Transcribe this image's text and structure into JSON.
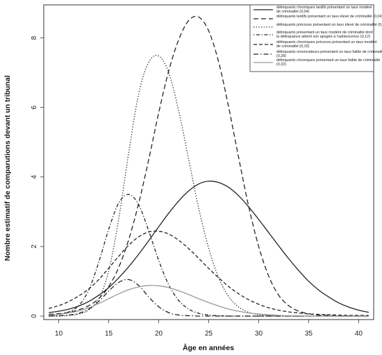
{
  "chart_data": {
    "type": "line",
    "xlabel": "Âge en années",
    "ylabel": "Nombre estimatif de comparutions devant un tribunal",
    "xlim": [
      8.5,
      41.5
    ],
    "ylim": [
      -0.1,
      8.95
    ],
    "xticks": [
      "10",
      "15",
      "20",
      "25",
      "30",
      "35",
      "40"
    ],
    "yticks": [
      "0",
      "2",
      "4",
      "6",
      "8"
    ],
    "legend_position": "top-right",
    "x": [
      9,
      10,
      11,
      12,
      13,
      14,
      15,
      16,
      17,
      18,
      19,
      20,
      21,
      22,
      23,
      24,
      25,
      26,
      27,
      28,
      29,
      30,
      31,
      32,
      33,
      34,
      35,
      36,
      37,
      38,
      39,
      40,
      41
    ],
    "series": [
      {
        "name": [
          "délinquants chroniques tardifs présentant un taux modéré",
          "de criminalité (0,04)"
        ],
        "style": "solid",
        "color": "#222222",
        "values": [
          0.1,
          0.14,
          0.2,
          0.29,
          0.42,
          0.6,
          0.82,
          1.1,
          1.42,
          1.78,
          2.17,
          2.57,
          2.96,
          3.31,
          3.6,
          3.8,
          3.88,
          3.84,
          3.7,
          3.46,
          3.14,
          2.78,
          2.4,
          2.02,
          1.65,
          1.31,
          1.0,
          0.75,
          0.55,
          0.38,
          0.26,
          0.17,
          0.11
        ]
      },
      {
        "name": [
          "délinquants tardifs présentant un taux élevé de criminalité (0,04)"
        ],
        "style": "longdash",
        "color": "#222222",
        "values": [
          0.05,
          0.07,
          0.11,
          0.18,
          0.3,
          0.5,
          0.85,
          1.4,
          2.2,
          3.25,
          4.5,
          5.85,
          7.05,
          7.95,
          8.5,
          8.6,
          8.2,
          7.3,
          6.0,
          4.55,
          3.15,
          2.0,
          1.15,
          0.6,
          0.3,
          0.14,
          0.07,
          0.03,
          0.02,
          0.01,
          0.0,
          0.0,
          0.0
        ]
      },
      {
        "name": [
          "délinquants précoces présentant un taux élevé de criminalité (0,04)"
        ],
        "style": "dotted",
        "color": "#222222",
        "values": [
          0.0,
          0.0,
          0.02,
          0.06,
          0.18,
          0.5,
          1.3,
          2.8,
          4.7,
          6.4,
          7.3,
          7.48,
          7.0,
          5.9,
          4.5,
          3.1,
          1.95,
          1.1,
          0.56,
          0.26,
          0.11,
          0.04,
          0.02,
          0.01,
          0.0,
          0.0,
          0.0,
          0.0,
          0.0,
          0.0,
          0.0,
          0.0,
          0.0
        ]
      },
      {
        "name": [
          "délinquants présentant un taux modéré de criminalité dont",
          "la délinquance atteint son apogée à l’adolescence (0,12)"
        ],
        "style": "dotdash",
        "color": "#222222",
        "values": [
          0.02,
          0.05,
          0.12,
          0.3,
          0.75,
          1.55,
          2.5,
          3.25,
          3.5,
          3.2,
          2.45,
          1.6,
          0.9,
          0.45,
          0.2,
          0.08,
          0.03,
          0.01,
          0.0,
          0.0,
          0.0,
          0.0,
          0.0,
          0.0,
          0.0,
          0.0,
          0.0,
          0.0,
          0.0,
          0.0,
          0.0,
          0.0,
          0.0
        ]
      },
      {
        "name": [
          "délinquants chroniques précoces présentant un taux modéré",
          "de criminalité (0,15)"
        ],
        "style": "dashed",
        "color": "#222222",
        "values": [
          0.22,
          0.3,
          0.42,
          0.58,
          0.78,
          1.05,
          1.38,
          1.72,
          2.04,
          2.28,
          2.42,
          2.44,
          2.36,
          2.18,
          1.94,
          1.66,
          1.37,
          1.1,
          0.85,
          0.64,
          0.47,
          0.34,
          0.24,
          0.17,
          0.12,
          0.09,
          0.06,
          0.05,
          0.04,
          0.03,
          0.02,
          0.02,
          0.02
        ]
      },
      {
        "name": [
          "délinquants renonciateurs présentant un taux faible de criminalité",
          "(0,28)"
        ],
        "style": "dashdot",
        "color": "#222222",
        "values": [
          0.0,
          0.01,
          0.03,
          0.08,
          0.2,
          0.42,
          0.72,
          0.97,
          1.05,
          0.88,
          0.55,
          0.27,
          0.1,
          0.03,
          0.01,
          0.0,
          0.0,
          0.0,
          0.0,
          0.0,
          0.0,
          0.0,
          0.0,
          0.0,
          0.0,
          0.0,
          0.0,
          0.0,
          0.0,
          0.0,
          0.0,
          0.0,
          0.0
        ]
      },
      {
        "name": [
          "délinquants chroniques présentant un taux faible de criminalité",
          "(0,32)"
        ],
        "style": "solid",
        "color": "#9a9a9a",
        "values": [
          0.03,
          0.05,
          0.09,
          0.15,
          0.24,
          0.36,
          0.5,
          0.64,
          0.76,
          0.84,
          0.88,
          0.87,
          0.82,
          0.73,
          0.62,
          0.5,
          0.39,
          0.29,
          0.2,
          0.14,
          0.09,
          0.06,
          0.04,
          0.02,
          0.01,
          0.01,
          0.0,
          0.0,
          0.0,
          0.0,
          0.0,
          0.0,
          0.0
        ]
      }
    ]
  }
}
